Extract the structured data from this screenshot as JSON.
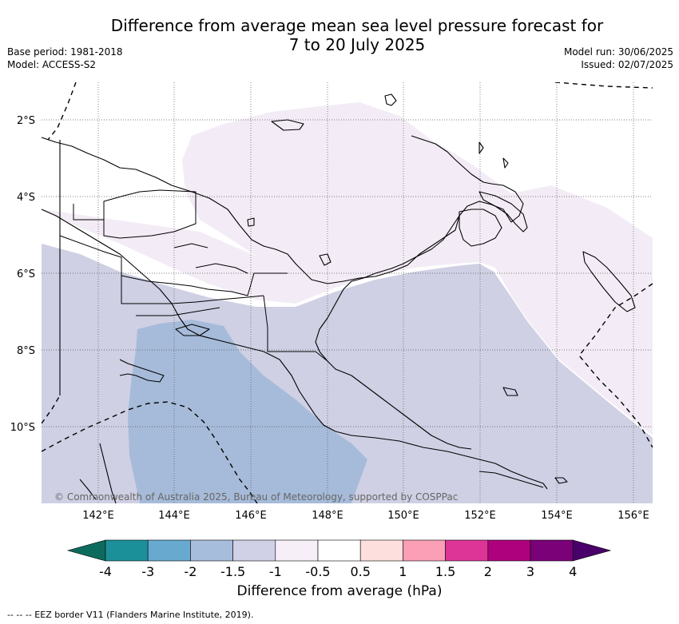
{
  "title_line1": "Difference from average mean sea level pressure forecast for",
  "title_line2": "7 to 20 July 2025",
  "base_period": "Base period: 1981-2018",
  "model": "Model: ACCESS-S2",
  "model_run": "Model run: 30/06/2025",
  "issued": "Issued: 02/07/2025",
  "lat_labels": [
    "2°S",
    "4°S",
    "6°S",
    "8°S",
    "10°S"
  ],
  "lon_labels": [
    "142°E",
    "144°E",
    "146°E",
    "148°E",
    "150°E",
    "152°E",
    "154°E",
    "156°E"
  ],
  "copyright": "© Commonwealth of Australia 2025, Bureau of Meteorology, supported by COSPPac",
  "colorbar": {
    "ticks": [
      "-4",
      "-3",
      "-2",
      "-1.5",
      "-1",
      "-0.5",
      "0.5",
      "1",
      "1.5",
      "2",
      "3",
      "4"
    ],
    "colors": [
      "#0d6b5e",
      "#1c9099",
      "#67a9cf",
      "#a6bddb",
      "#d0d1e6",
      "#f6eff7",
      "#ffffff",
      "#fde0dd",
      "#fa9fb5",
      "#dd3497",
      "#ae017e",
      "#7a0177",
      "#49006a"
    ],
    "title": "Difference from average (hPa)"
  },
  "footer": "--  --  -- EEZ border V11 (Flanders Marine Institute, 2019)."
}
